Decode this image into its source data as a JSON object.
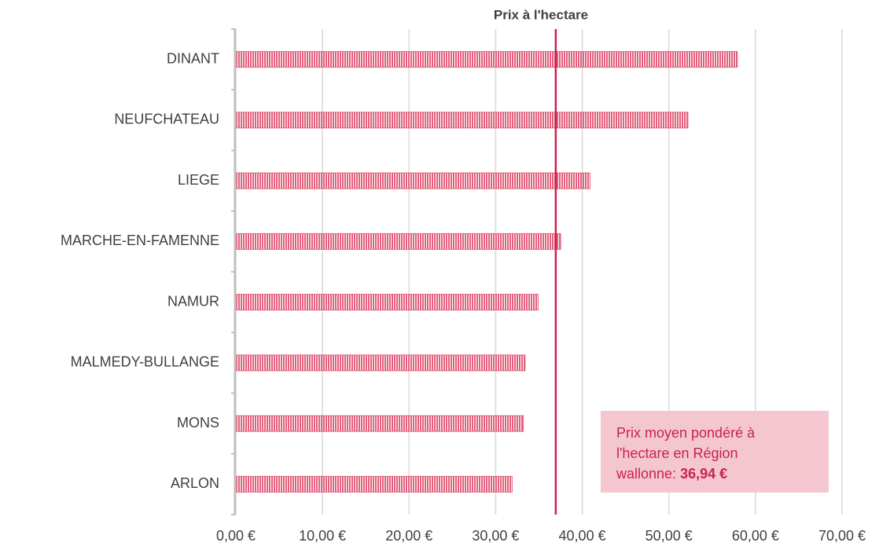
{
  "chart_data": {
    "type": "barh",
    "title": "Prix à l'hectare",
    "categories": [
      "DINANT",
      "NEUFCHATEAU",
      "LIEGE",
      "MARCHE-EN-FAMENNE",
      "NAMUR",
      "MALMEDY-BULLANGE",
      "MONS",
      "ARLON"
    ],
    "values": [
      57.9,
      52.2,
      40.9,
      37.5,
      34.9,
      33.4,
      33.2,
      31.9
    ],
    "color": "#e3607c",
    "xlim": [
      0,
      70
    ],
    "xticks": [
      {
        "value": 0,
        "label": "0,00 €"
      },
      {
        "value": 10,
        "label": "10,00 €"
      },
      {
        "value": 20,
        "label": "20,00 €"
      },
      {
        "value": 30,
        "label": "30,00 €"
      },
      {
        "value": 40,
        "label": "40,00 €"
      },
      {
        "value": 50,
        "label": "50,00 €"
      },
      {
        "value": 60,
        "label": "60,00 €"
      },
      {
        "value": 70,
        "label": "70,00 €"
      }
    ],
    "grid": true,
    "reference_line": {
      "value": 36.94,
      "label": "36,94 €",
      "color": "#c8234a"
    },
    "annotation": [
      "Prix moyen pondéré à",
      "l'hectare en Région",
      "wallonne:"
    ]
  }
}
